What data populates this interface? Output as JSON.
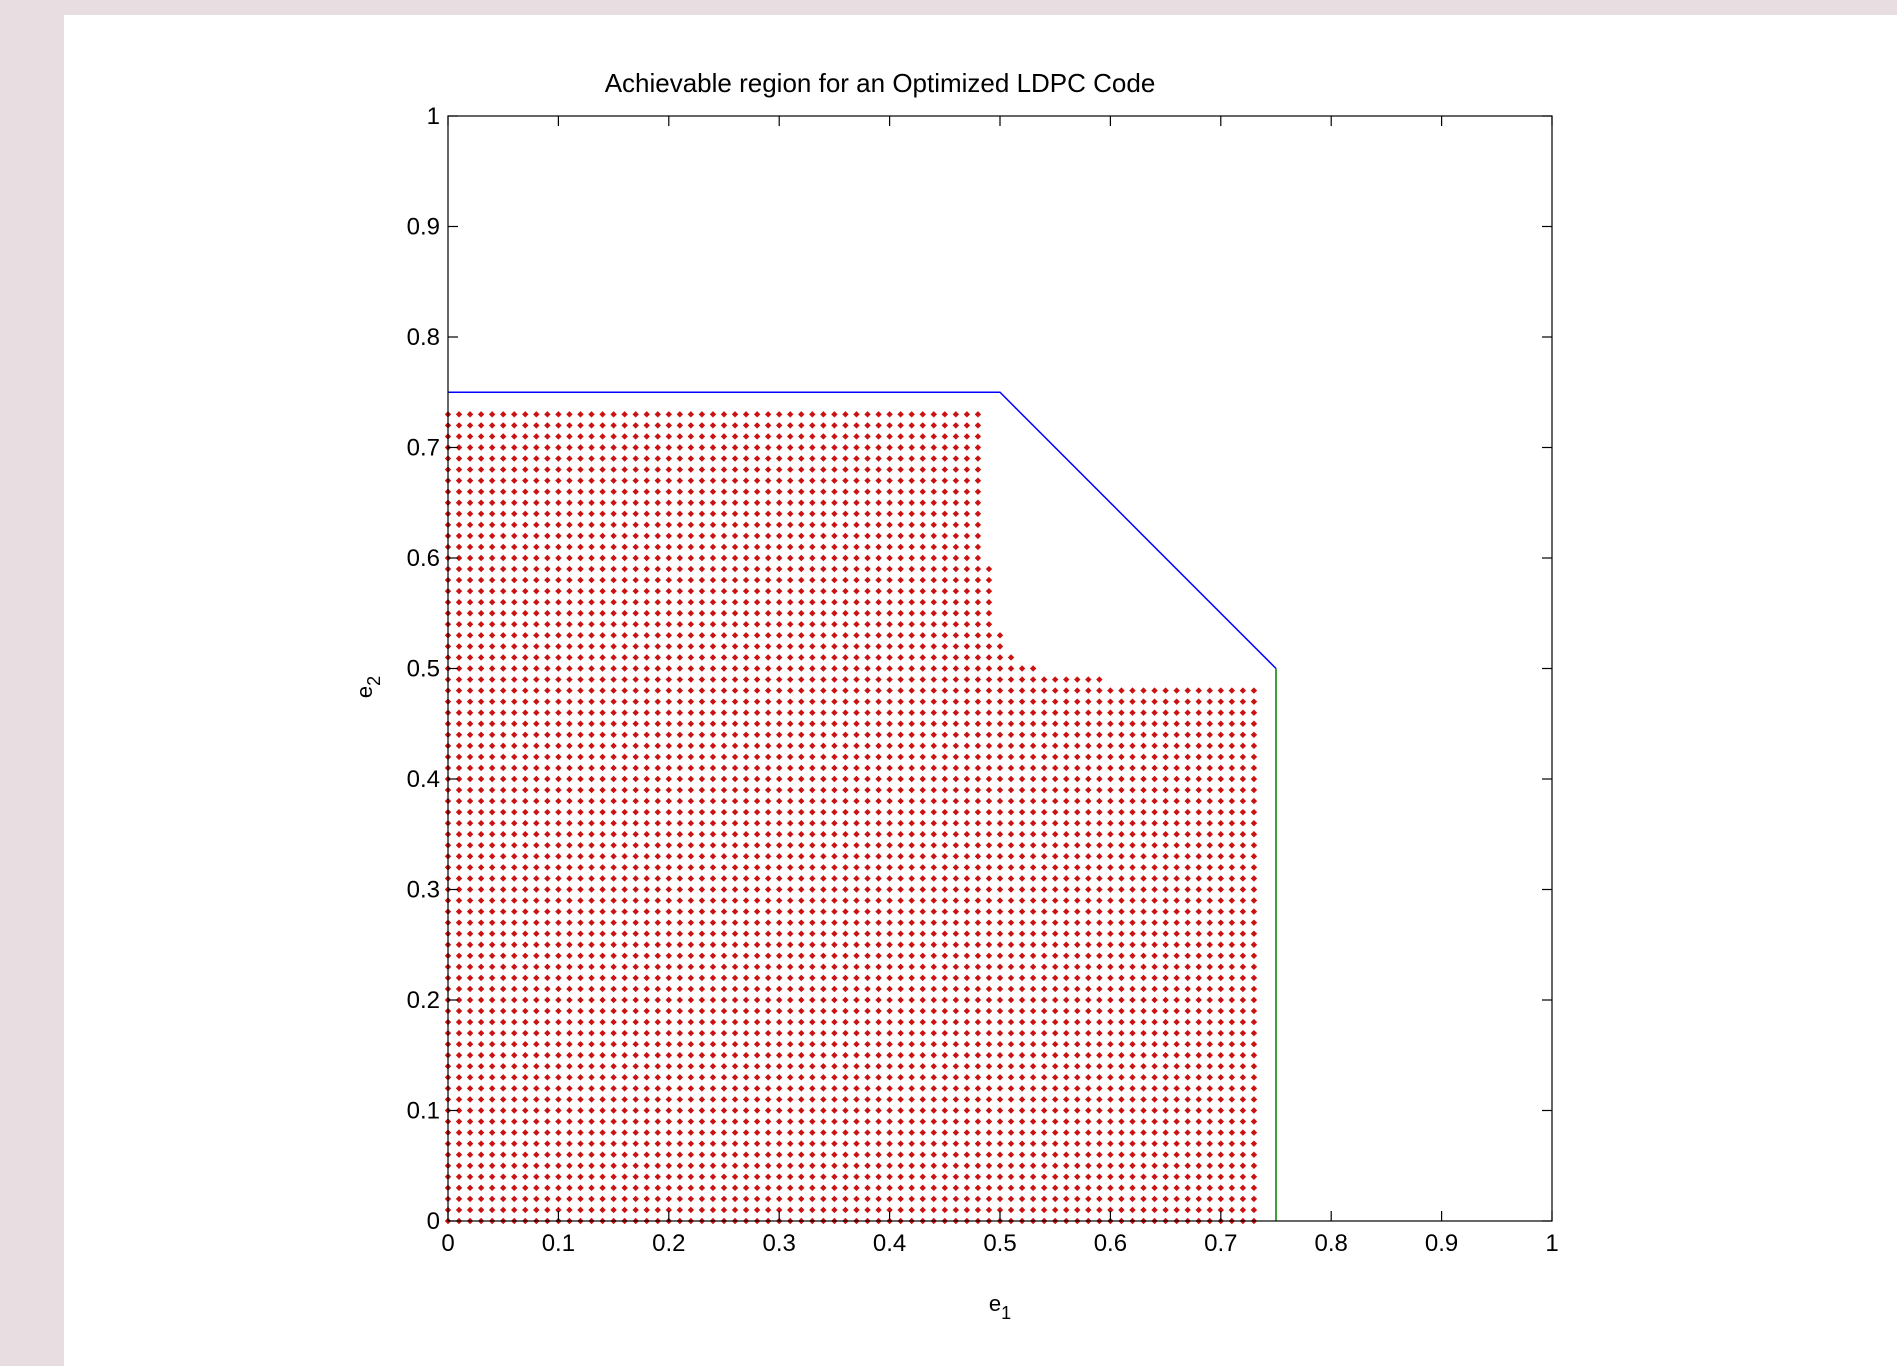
{
  "chart_data": {
    "type": "scatter",
    "title": "Achievable region for an Optimized LDPC Code",
    "xlabel": "e",
    "xlabel_sub": "1",
    "ylabel": "e",
    "ylabel_sub": "2",
    "xlim": [
      0,
      1
    ],
    "ylim": [
      0,
      1
    ],
    "xticks": [
      0,
      0.1,
      0.2,
      0.3,
      0.4,
      0.5,
      0.6,
      0.7,
      0.8,
      0.9,
      1
    ],
    "yticks": [
      0,
      0.1,
      0.2,
      0.3,
      0.4,
      0.5,
      0.6,
      0.7,
      0.8,
      0.9,
      1
    ],
    "xtick_labels": [
      "0",
      "0.1",
      "0.2",
      "0.3",
      "0.4",
      "0.5",
      "0.6",
      "0.7",
      "0.8",
      "0.9",
      "1"
    ],
    "ytick_labels": [
      "0",
      "0.1",
      "0.2",
      "0.3",
      "0.4",
      "0.5",
      "0.6",
      "0.7",
      "0.8",
      "0.9",
      "1"
    ],
    "grid": false,
    "boundary_lines": [
      {
        "color": "#0000ff",
        "x": [
          0,
          0.5,
          0.75
        ],
        "y": [
          0.75,
          0.75,
          0.5
        ]
      },
      {
        "color": "#008000",
        "x": [
          0.75,
          0.75
        ],
        "y": [
          0.5,
          0
        ]
      }
    ],
    "achievable_points": {
      "color": "#cc1111",
      "marker": "diamond",
      "grid_step": 0.01,
      "region_rows": [
        {
          "y_min": 0.0,
          "y_max": 0.48,
          "x_max": 0.73
        },
        {
          "y_min": 0.49,
          "y_max": 0.49,
          "x_max": 0.59
        },
        {
          "y_min": 0.5,
          "y_max": 0.5,
          "x_max": 0.53
        },
        {
          "y_min": 0.51,
          "y_max": 0.51,
          "x_max": 0.51
        },
        {
          "y_min": 0.52,
          "y_max": 0.53,
          "x_max": 0.5
        },
        {
          "y_min": 0.54,
          "y_max": 0.59,
          "x_max": 0.49
        },
        {
          "y_min": 0.6,
          "y_max": 0.73,
          "x_max": 0.48
        }
      ]
    }
  }
}
